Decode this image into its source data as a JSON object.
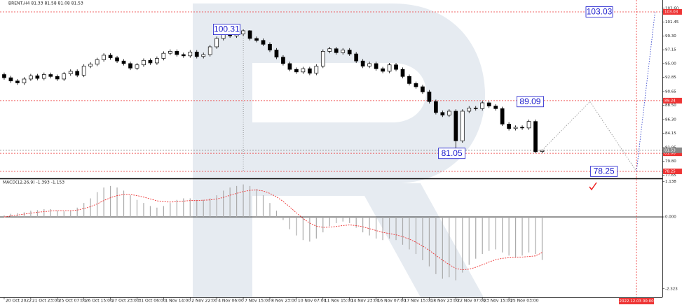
{
  "chart_data": {
    "type": "candlestick",
    "title": "BRENT,H4  81.33 81.58 81.08 81.53",
    "xlim": [
      -0.63,
      99.1
    ],
    "ylim": [
      77.16,
      104.88
    ],
    "yticks": [
      {
        "value": 103.6,
        "label": "103.60"
      },
      {
        "value": 101.45,
        "label": "101.45"
      },
      {
        "value": 99.3,
        "label": "99.30"
      },
      {
        "value": 97.15,
        "label": "97.15"
      },
      {
        "value": 95.0,
        "label": "95.00"
      },
      {
        "value": 92.85,
        "label": "92.85"
      },
      {
        "value": 90.65,
        "label": "90.65"
      },
      {
        "value": 88.5,
        "label": "88.50"
      },
      {
        "value": 86.3,
        "label": "86.30"
      },
      {
        "value": 84.15,
        "label": "84.15"
      },
      {
        "value": 81.95,
        "label": "81.95"
      },
      {
        "value": 79.8,
        "label": "79.80"
      },
      {
        "value": 77.65,
        "label": "77.65"
      }
    ],
    "xticks": [
      {
        "value": 0,
        "label": "20 Oct 2022"
      },
      {
        "value": 4,
        "label": "21 Oct 23:00"
      },
      {
        "value": 8,
        "label": "25 Oct 07:00"
      },
      {
        "value": 12,
        "label": "26 Oct 15:00"
      },
      {
        "value": 16,
        "label": "27 Oct 23:00"
      },
      {
        "value": 20,
        "label": "31 Oct 06:00"
      },
      {
        "value": 24,
        "label": "1 Nov 14:00"
      },
      {
        "value": 28,
        "label": "2 Nov 22:00"
      },
      {
        "value": 32,
        "label": "4 Nov 06:00"
      },
      {
        "value": 36,
        "label": "7 Nov 15:00"
      },
      {
        "value": 40,
        "label": "8 Nov 23:00"
      },
      {
        "value": 44,
        "label": "10 Nov 07:00"
      },
      {
        "value": 48,
        "label": "11 Nov 15:00"
      },
      {
        "value": 52,
        "label": "14 Nov 23:00"
      },
      {
        "value": 56,
        "label": "16 Nov 07:00"
      },
      {
        "value": 60,
        "label": "17 Nov 15:00"
      },
      {
        "value": 64,
        "label": "18 Nov 23:00"
      },
      {
        "value": 68,
        "label": "22 Nov 07:00"
      },
      {
        "value": 72,
        "label": "23 Nov 15:00"
      },
      {
        "value": 76,
        "label": "25 Nov 03:00"
      }
    ],
    "cursor": {
      "value": 95.2,
      "label": "2022.12.03 00:00"
    },
    "ohlc": [
      [
        93.3,
        93.6,
        92.5,
        92.8
      ],
      [
        92.8,
        93.1,
        92.0,
        92.3
      ],
      [
        92.3,
        92.6,
        91.7,
        92.0
      ],
      [
        92.0,
        92.9,
        91.7,
        92.6
      ],
      [
        92.6,
        93.4,
        92.3,
        93.1
      ],
      [
        93.1,
        93.4,
        92.4,
        92.7
      ],
      [
        92.7,
        93.6,
        92.4,
        93.3
      ],
      [
        93.3,
        93.6,
        92.7,
        93.0
      ],
      [
        93.0,
        93.3,
        92.3,
        92.6
      ],
      [
        92.6,
        93.7,
        92.3,
        93.4
      ],
      [
        93.4,
        94.1,
        93.1,
        93.8
      ],
      [
        93.8,
        94.1,
        92.9,
        93.2
      ],
      [
        93.2,
        94.9,
        92.9,
        94.6
      ],
      [
        94.6,
        95.2,
        94.3,
        94.9
      ],
      [
        94.9,
        95.9,
        94.6,
        95.6
      ],
      [
        95.6,
        96.6,
        95.3,
        96.3
      ],
      [
        96.3,
        96.6,
        95.6,
        95.9
      ],
      [
        95.9,
        96.2,
        95.1,
        95.4
      ],
      [
        95.4,
        95.7,
        94.7,
        95.0
      ],
      [
        95.0,
        95.3,
        94.0,
        94.3
      ],
      [
        94.3,
        95.1,
        94.0,
        94.8
      ],
      [
        94.8,
        95.8,
        94.5,
        95.5
      ],
      [
        95.5,
        95.8,
        94.8,
        95.1
      ],
      [
        95.1,
        96.1,
        94.8,
        95.8
      ],
      [
        95.8,
        96.9,
        95.5,
        96.6
      ],
      [
        96.6,
        97.2,
        96.3,
        96.9
      ],
      [
        96.9,
        97.2,
        96.1,
        96.4
      ],
      [
        96.4,
        96.7,
        95.9,
        96.2
      ],
      [
        96.2,
        97.1,
        95.9,
        96.8
      ],
      [
        96.8,
        97.1,
        95.8,
        96.1
      ],
      [
        96.1,
        96.7,
        95.8,
        96.4
      ],
      [
        96.4,
        97.9,
        96.1,
        97.6
      ],
      [
        97.6,
        99.2,
        97.3,
        98.9
      ],
      [
        98.9,
        100.1,
        98.6,
        99.8
      ],
      [
        99.8,
        100.1,
        99.0,
        99.3
      ],
      [
        99.3,
        99.9,
        99.0,
        99.6
      ],
      [
        99.6,
        100.31,
        99.3,
        100.1
      ],
      [
        100.1,
        100.2,
        98.6,
        98.9
      ],
      [
        98.9,
        99.2,
        98.3,
        98.6
      ],
      [
        98.6,
        98.9,
        97.7,
        98.0
      ],
      [
        98.0,
        98.3,
        96.8,
        97.1
      ],
      [
        97.1,
        97.4,
        95.7,
        96.0
      ],
      [
        96.0,
        96.3,
        94.7,
        95.0
      ],
      [
        95.0,
        95.3,
        93.8,
        94.1
      ],
      [
        94.1,
        94.4,
        93.4,
        93.7
      ],
      [
        93.7,
        94.5,
        93.4,
        94.2
      ],
      [
        94.2,
        94.5,
        93.2,
        93.5
      ],
      [
        93.5,
        94.9,
        93.2,
        94.6
      ],
      [
        94.6,
        97.2,
        94.3,
        96.9
      ],
      [
        96.9,
        97.6,
        96.6,
        97.3
      ],
      [
        97.3,
        97.6,
        96.4,
        96.7
      ],
      [
        96.7,
        97.4,
        96.4,
        97.1
      ],
      [
        97.1,
        97.4,
        96.2,
        96.5
      ],
      [
        96.5,
        96.8,
        95.1,
        95.4
      ],
      [
        95.4,
        95.7,
        94.3,
        94.6
      ],
      [
        94.6,
        95.3,
        94.3,
        95.0
      ],
      [
        95.0,
        95.3,
        93.9,
        94.2
      ],
      [
        94.2,
        94.5,
        93.5,
        93.8
      ],
      [
        93.8,
        95.1,
        93.5,
        94.8
      ],
      [
        94.8,
        95.1,
        93.8,
        94.1
      ],
      [
        94.1,
        94.4,
        92.7,
        93.0
      ],
      [
        93.0,
        93.3,
        91.6,
        91.9
      ],
      [
        91.9,
        92.2,
        91.1,
        91.4
      ],
      [
        91.4,
        91.7,
        90.3,
        90.6
      ],
      [
        90.6,
        90.9,
        88.8,
        89.1
      ],
      [
        89.1,
        89.4,
        87.1,
        87.4
      ],
      [
        87.4,
        87.7,
        86.7,
        87.0
      ],
      [
        87.0,
        87.9,
        86.7,
        87.6
      ],
      [
        87.6,
        87.9,
        81.05,
        83.0
      ],
      [
        83.0,
        87.9,
        82.7,
        87.6
      ],
      [
        87.6,
        88.4,
        87.3,
        88.1
      ],
      [
        88.1,
        88.4,
        87.7,
        88.0
      ],
      [
        88.0,
        89.2,
        87.7,
        88.9
      ],
      [
        88.9,
        89.2,
        88.1,
        88.4
      ],
      [
        88.4,
        88.7,
        87.7,
        88.0
      ],
      [
        88.0,
        88.3,
        85.3,
        85.6
      ],
      [
        85.6,
        85.9,
        84.6,
        84.9
      ],
      [
        84.9,
        85.4,
        84.6,
        85.1
      ],
      [
        85.1,
        85.4,
        84.7,
        85.0
      ],
      [
        85.0,
        86.3,
        84.7,
        86.0
      ],
      [
        86.0,
        86.3,
        81.1,
        81.3
      ],
      [
        81.33,
        81.58,
        81.08,
        81.53
      ]
    ],
    "levels": [
      103.03,
      89.24,
      81.06,
      78.25
    ],
    "price_line": 81.53,
    "annotations": [
      {
        "value": 100.31,
        "x": 33.5
      },
      {
        "value": 81.05,
        "x": 67.4
      },
      {
        "value": 89.09,
        "x": 79.2
      },
      {
        "value": 103.03,
        "x": 89.6
      },
      {
        "value": 78.25,
        "x": 90.3
      }
    ],
    "forecast": {
      "x": [
        81,
        88.2,
        95.2,
        98.0
      ],
      "values": [
        81.53,
        89.09,
        78.25,
        103.03
      ]
    },
    "macd": {
      "title": "MACD(12,26,9) -1.393 -1.153",
      "ylim": [
        -2.6,
        1.2
      ],
      "yticks": [
        1.138,
        {
          "value": 0,
          "label": "0.000"
        },
        -2.323
      ],
      "histogram": [
        0.05,
        0.1,
        0.12,
        0.15,
        0.2,
        0.22,
        0.25,
        0.25,
        0.2,
        0.18,
        0.2,
        0.3,
        0.45,
        0.6,
        0.8,
        0.95,
        1.0,
        0.95,
        0.85,
        0.7,
        0.55,
        0.45,
        0.35,
        0.3,
        0.35,
        0.45,
        0.55,
        0.6,
        0.6,
        0.55,
        0.55,
        0.6,
        0.7,
        0.85,
        0.95,
        1.0,
        1.05,
        1.0,
        0.9,
        0.7,
        0.45,
        0.2,
        -0.1,
        -0.4,
        -0.6,
        -0.75,
        -0.8,
        -0.7,
        -0.5,
        -0.3,
        -0.2,
        -0.15,
        -0.2,
        -0.35,
        -0.5,
        -0.6,
        -0.7,
        -0.75,
        -0.7,
        -0.75,
        -0.9,
        -1.05,
        -1.2,
        -1.4,
        -1.6,
        -1.85,
        -2.0,
        -1.95,
        -2.05,
        -1.8,
        -1.55,
        -1.35,
        -1.2,
        -1.1,
        -1.05,
        -1.15,
        -1.25,
        -1.3,
        -1.25,
        -1.15,
        -1.2,
        -1.393
      ],
      "signal": [
        0.0,
        0.03,
        0.06,
        0.09,
        0.12,
        0.15,
        0.17,
        0.19,
        0.2,
        0.2,
        0.2,
        0.22,
        0.27,
        0.33,
        0.42,
        0.53,
        0.62,
        0.69,
        0.72,
        0.72,
        0.69,
        0.64,
        0.58,
        0.52,
        0.49,
        0.48,
        0.49,
        0.51,
        0.53,
        0.53,
        0.54,
        0.55,
        0.58,
        0.63,
        0.7,
        0.76,
        0.82,
        0.86,
        0.87,
        0.84,
        0.76,
        0.65,
        0.5,
        0.32,
        0.13,
        -0.05,
        -0.2,
        -0.3,
        -0.34,
        -0.33,
        -0.31,
        -0.28,
        -0.26,
        -0.28,
        -0.32,
        -0.38,
        -0.44,
        -0.5,
        -0.54,
        -0.58,
        -0.64,
        -0.72,
        -0.82,
        -0.94,
        -1.08,
        -1.24,
        -1.4,
        -1.54,
        -1.67,
        -1.71,
        -1.69,
        -1.63,
        -1.55,
        -1.46,
        -1.38,
        -1.34,
        -1.32,
        -1.31,
        -1.3,
        -1.28,
        -1.26,
        -1.153
      ]
    }
  }
}
